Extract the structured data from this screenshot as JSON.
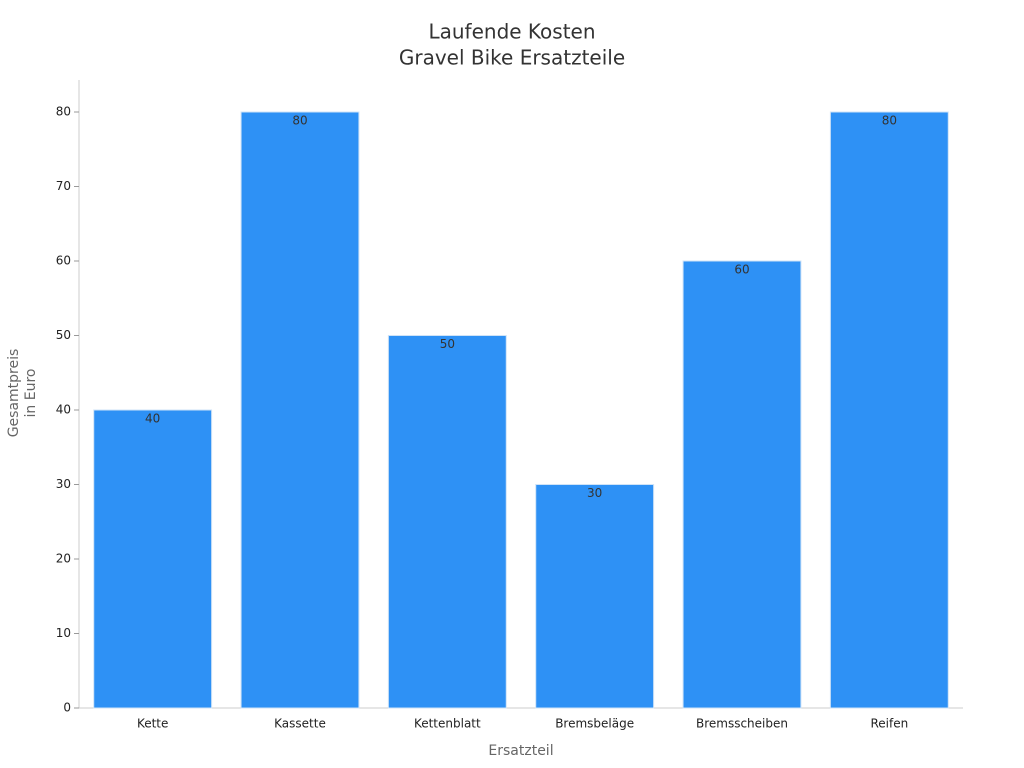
{
  "chart_data": {
    "type": "bar",
    "title": [
      "Laufende Kosten",
      "Gravel Bike Ersatzteile"
    ],
    "xlabel": "Ersatzteil",
    "ylabel": [
      "Gesamtpreis",
      "in Euro"
    ],
    "categories": [
      "Kette",
      "Kassette",
      "Kettenblatt",
      "Bremsbeläge",
      "Bremsscheiben",
      "Reifen"
    ],
    "values": [
      40,
      80,
      50,
      30,
      60,
      80
    ],
    "color": "#2e91f5",
    "ylim": [
      0,
      84
    ],
    "yticks": [
      0,
      10,
      20,
      30,
      40,
      50,
      60,
      70,
      80
    ],
    "grid": false
  }
}
